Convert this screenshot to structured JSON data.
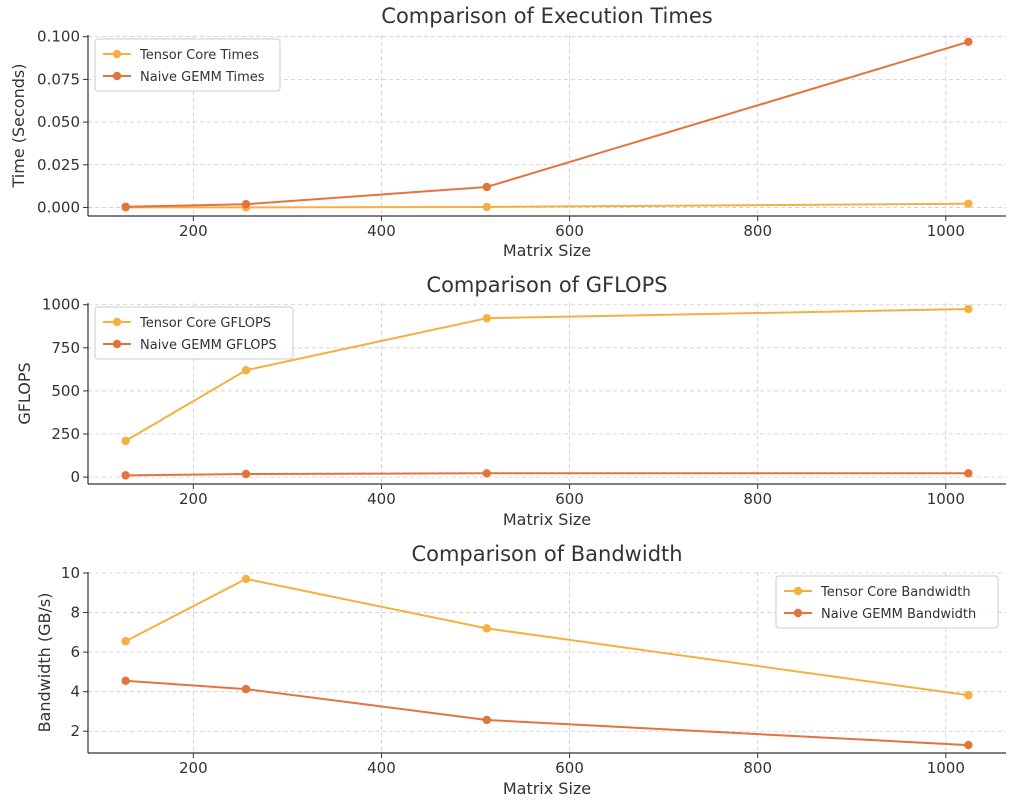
{
  "chart_data": [
    {
      "type": "line",
      "title": "Comparison of Execution Times",
      "xlabel": "Matrix Size",
      "ylabel": "Time (Seconds)",
      "xlim": [
        88,
        1064
      ],
      "ylim": [
        -0.005,
        0.101
      ],
      "x": [
        128,
        256,
        512,
        1024
      ],
      "xticks": [
        200,
        400,
        600,
        800,
        1000
      ],
      "yticks": [
        0.0,
        0.025,
        0.05,
        0.075,
        0.1
      ],
      "ytick_labels": [
        "0.000",
        "0.025",
        "0.050",
        "0.075",
        "0.100"
      ],
      "grid": true,
      "legend_position": "upper-left",
      "series": [
        {
          "name": "Tensor Core Times",
          "color": "#F5B041",
          "values": [
            2e-05,
            5e-05,
            0.0003,
            0.0022
          ]
        },
        {
          "name": "Naive GEMM Times",
          "color": "#E2743C",
          "values": [
            0.0004,
            0.0019,
            0.012,
            0.097
          ]
        }
      ]
    },
    {
      "type": "line",
      "title": "Comparison of GFLOPS",
      "xlabel": "Matrix Size",
      "ylabel": "GFLOPS",
      "xlim": [
        88,
        1064
      ],
      "ylim": [
        -40,
        1010
      ],
      "x": [
        128,
        256,
        512,
        1024
      ],
      "xticks": [
        200,
        400,
        600,
        800,
        1000
      ],
      "yticks": [
        0,
        250,
        500,
        750,
        1000
      ],
      "ytick_labels": [
        "0",
        "250",
        "500",
        "750",
        "1000"
      ],
      "grid": true,
      "legend_position": "upper-left",
      "series": [
        {
          "name": "Tensor Core GFLOPS",
          "color": "#F5B041",
          "values": [
            210,
            620,
            922,
            975
          ]
        },
        {
          "name": "Naive GEMM GFLOPS",
          "color": "#E2743C",
          "values": [
            10,
            18,
            22,
            22
          ]
        }
      ]
    },
    {
      "type": "line",
      "title": "Comparison of Bandwidth",
      "xlabel": "Matrix Size",
      "ylabel": "Bandwidth (GB/s)",
      "xlim": [
        88,
        1064
      ],
      "ylim": [
        0.9,
        10.05
      ],
      "x": [
        128,
        256,
        512,
        1024
      ],
      "xticks": [
        200,
        400,
        600,
        800,
        1000
      ],
      "yticks": [
        2,
        4,
        6,
        8,
        10
      ],
      "ytick_labels": [
        "2",
        "4",
        "6",
        "8",
        "10"
      ],
      "grid": true,
      "legend_position": "upper-right",
      "series": [
        {
          "name": "Tensor Core Bandwidth",
          "color": "#F5B041",
          "values": [
            6.55,
            9.7,
            7.2,
            3.82
          ]
        },
        {
          "name": "Naive GEMM Bandwidth",
          "color": "#E2743C",
          "values": [
            4.55,
            4.13,
            2.57,
            1.3
          ]
        }
      ]
    }
  ]
}
